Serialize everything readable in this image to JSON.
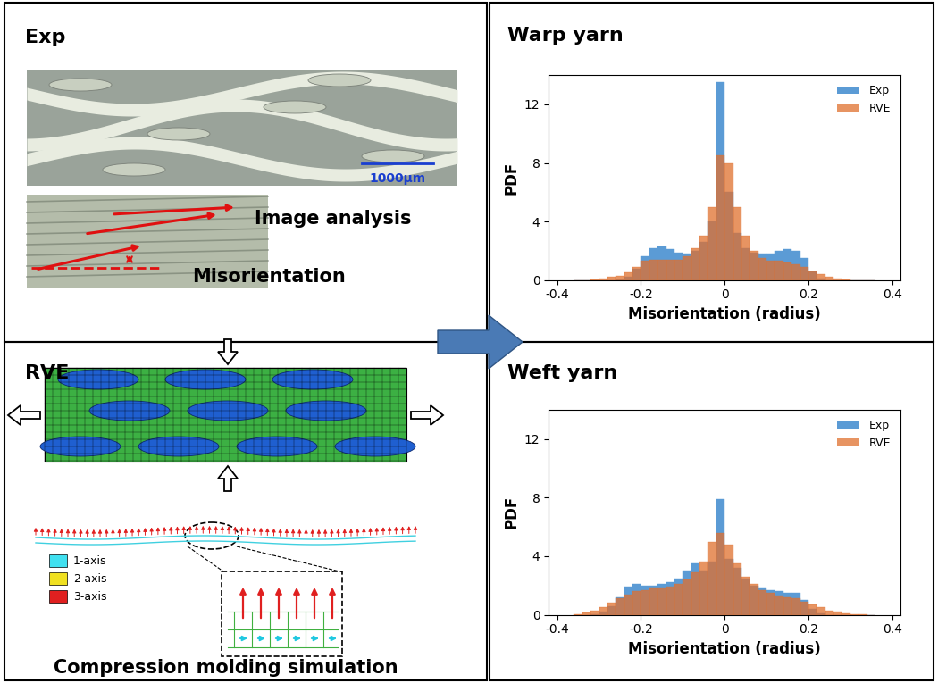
{
  "chart_data": [
    {
      "type": "histogram",
      "title": "Warp yarn",
      "x_label": "Misorientation (radius)",
      "y_label": "PDF",
      "bins": [
        -0.36,
        -0.34,
        -0.32,
        -0.3,
        -0.28,
        -0.26,
        -0.24,
        -0.22,
        -0.2,
        -0.18,
        -0.16,
        -0.14,
        -0.12,
        -0.1,
        -0.08,
        -0.06,
        -0.04,
        -0.02,
        0,
        0.02,
        0.04,
        0.06,
        0.08,
        0.1,
        0.12,
        0.14,
        0.16,
        0.18,
        0.2,
        0.22,
        0.24,
        0.26,
        0.28,
        0.3,
        0.32,
        0.34,
        0.36
      ],
      "series": [
        {
          "name": "Exp",
          "color": "#5b9bd5",
          "values": [
            0,
            0,
            0,
            0,
            0,
            0.05,
            0.2,
            0.8,
            1.6,
            2.2,
            2.3,
            2.1,
            1.9,
            1.8,
            2.0,
            2.6,
            4.0,
            13.5,
            6.0,
            3.2,
            2.2,
            1.9,
            1.8,
            1.8,
            2.0,
            2.1,
            2.0,
            1.5,
            0.6,
            0.1,
            0,
            0,
            0,
            0,
            0,
            0
          ]
        },
        {
          "name": "RVE",
          "color": "#e0702e",
          "values": [
            0,
            0,
            0.05,
            0.1,
            0.2,
            0.3,
            0.5,
            0.9,
            1.3,
            1.4,
            1.4,
            1.4,
            1.4,
            1.6,
            2.2,
            3.0,
            5.0,
            8.5,
            8.0,
            5.0,
            3.0,
            2.0,
            1.5,
            1.3,
            1.3,
            1.2,
            1.1,
            0.9,
            0.6,
            0.4,
            0.2,
            0.1,
            0.05,
            0,
            0,
            0
          ]
        }
      ],
      "xlim": [
        -0.42,
        0.42
      ],
      "xticks": [
        -0.4,
        -0.2,
        0,
        0.2,
        0.4
      ],
      "ylim": [
        0,
        14
      ],
      "yticks": [
        0,
        4,
        8,
        12
      ],
      "legend": "upper right"
    },
    {
      "type": "histogram",
      "title": "Weft yarn",
      "x_label": "Misorientation (radius)",
      "y_label": "PDF",
      "bins": [
        -0.36,
        -0.34,
        -0.32,
        -0.3,
        -0.28,
        -0.26,
        -0.24,
        -0.22,
        -0.2,
        -0.18,
        -0.16,
        -0.14,
        -0.12,
        -0.1,
        -0.08,
        -0.06,
        -0.04,
        -0.02,
        0,
        0.02,
        0.04,
        0.06,
        0.08,
        0.1,
        0.12,
        0.14,
        0.16,
        0.18,
        0.2,
        0.22,
        0.24,
        0.26,
        0.28,
        0.3,
        0.32,
        0.34,
        0.36
      ],
      "series": [
        {
          "name": "Exp",
          "color": "#5b9bd5",
          "values": [
            0,
            0,
            0.05,
            0.2,
            0.6,
            1.2,
            1.9,
            2.1,
            2.0,
            2.0,
            2.1,
            2.2,
            2.5,
            3.0,
            3.5,
            3.0,
            3.6,
            7.9,
            3.8,
            3.2,
            2.5,
            2.0,
            1.8,
            1.7,
            1.6,
            1.5,
            1.5,
            1.0,
            0.4,
            0.1,
            0,
            0,
            0,
            0,
            0,
            0
          ]
        },
        {
          "name": "RVE",
          "color": "#e0702e",
          "values": [
            0.05,
            0.15,
            0.3,
            0.5,
            0.8,
            1.1,
            1.4,
            1.6,
            1.7,
            1.8,
            1.8,
            1.9,
            2.1,
            2.4,
            2.9,
            3.6,
            5.0,
            5.6,
            4.8,
            3.5,
            2.6,
            2.1,
            1.7,
            1.5,
            1.3,
            1.2,
            1.1,
            0.9,
            0.7,
            0.5,
            0.3,
            0.2,
            0.1,
            0.05,
            0.02,
            0
          ]
        }
      ],
      "xlim": [
        -0.42,
        0.42
      ],
      "xticks": [
        -0.4,
        -0.2,
        0,
        0.2,
        0.4
      ],
      "ylim": [
        0,
        14
      ],
      "yticks": [
        0,
        4,
        8,
        12
      ],
      "legend": "upper right"
    }
  ],
  "diagram": {
    "exp_panel": {
      "title": "Exp",
      "scale_bar": "1000μm",
      "labels": [
        "Image analysis",
        "Misorientation"
      ]
    },
    "rve_panel": {
      "title": "RVE",
      "axis_legend": [
        "1-axis",
        "2-axis",
        "3-axis"
      ],
      "caption": "Compression molding simulation"
    }
  }
}
